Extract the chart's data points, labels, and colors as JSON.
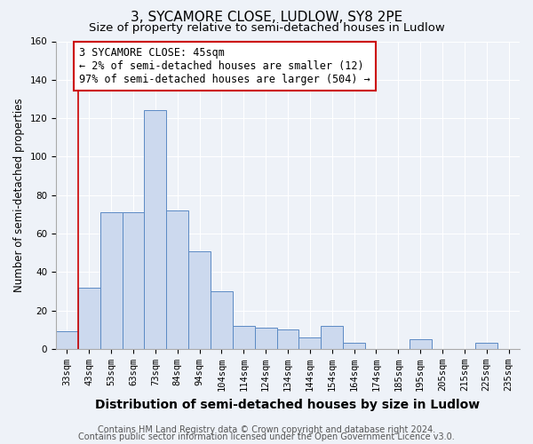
{
  "title": "3, SYCAMORE CLOSE, LUDLOW, SY8 2PE",
  "subtitle": "Size of property relative to semi-detached houses in Ludlow",
  "xlabel": "Distribution of semi-detached houses by size in Ludlow",
  "ylabel": "Number of semi-detached properties",
  "bar_labels": [
    "33sqm",
    "43sqm",
    "53sqm",
    "63sqm",
    "73sqm",
    "84sqm",
    "94sqm",
    "104sqm",
    "114sqm",
    "124sqm",
    "134sqm",
    "144sqm",
    "154sqm",
    "164sqm",
    "174sqm",
    "185sqm",
    "195sqm",
    "205sqm",
    "215sqm",
    "225sqm",
    "235sqm"
  ],
  "bar_values": [
    9,
    32,
    71,
    71,
    124,
    72,
    51,
    30,
    12,
    11,
    10,
    6,
    12,
    3,
    0,
    0,
    5,
    0,
    0,
    3,
    0
  ],
  "bar_color": "#ccd9ee",
  "bar_edge_color": "#5b8ac4",
  "ylim": [
    0,
    160
  ],
  "yticks": [
    0,
    20,
    40,
    60,
    80,
    100,
    120,
    140,
    160
  ],
  "property_line_color": "#cc0000",
  "annotation_text": "3 SYCAMORE CLOSE: 45sqm\n← 2% of semi-detached houses are smaller (12)\n97% of semi-detached houses are larger (504) →",
  "annotation_box_color": "#ffffff",
  "annotation_box_edge": "#cc0000",
  "footer1": "Contains HM Land Registry data © Crown copyright and database right 2024.",
  "footer2": "Contains public sector information licensed under the Open Government Licence v3.0.",
  "background_color": "#eef2f8",
  "title_fontsize": 11,
  "subtitle_fontsize": 9.5,
  "xlabel_fontsize": 10,
  "ylabel_fontsize": 8.5,
  "tick_fontsize": 7.5,
  "annotation_fontsize": 8.5,
  "footer_fontsize": 7
}
